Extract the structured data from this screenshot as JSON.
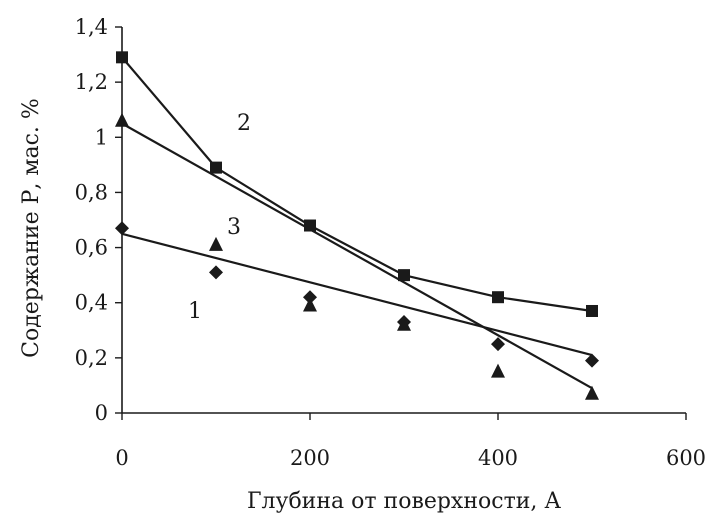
{
  "chart_data": {
    "type": "line",
    "xlabel": "Глубина от поверхности, А",
    "ylabel": "Содержание Р, мас. %",
    "xlim": [
      0,
      600
    ],
    "ylim": [
      0,
      1.4
    ],
    "x_ticks": [
      "0",
      "200",
      "400",
      "600"
    ],
    "y_ticks": [
      "0",
      "0,2",
      "0,4",
      "0,6",
      "0,8",
      "1",
      "1,2",
      "1,4"
    ],
    "grid": false,
    "series": [
      {
        "name": "1",
        "marker": "diamond",
        "x": [
          0,
          100,
          200,
          300,
          400,
          500
        ],
        "y": [
          0.67,
          0.51,
          0.42,
          0.33,
          0.25,
          0.19
        ]
      },
      {
        "name": "2",
        "marker": "square",
        "x": [
          0,
          100,
          200,
          300,
          400,
          500
        ],
        "y": [
          1.29,
          0.89,
          0.68,
          0.5,
          0.42,
          0.37
        ]
      },
      {
        "name": "3",
        "marker": "triangle",
        "x": [
          0,
          100,
          200,
          300,
          400,
          500
        ],
        "y": [
          1.06,
          0.61,
          0.39,
          0.32,
          0.15,
          0.07
        ]
      }
    ],
    "trend_lines": [
      {
        "series": "1",
        "x": [
          0,
          500
        ],
        "y": [
          0.65,
          0.21
        ]
      },
      {
        "series": "3",
        "x": [
          0,
          500
        ],
        "y": [
          1.05,
          0.09
        ]
      }
    ],
    "colors": {
      "ink": "#1a1a1a",
      "background": "#ffffff"
    }
  }
}
